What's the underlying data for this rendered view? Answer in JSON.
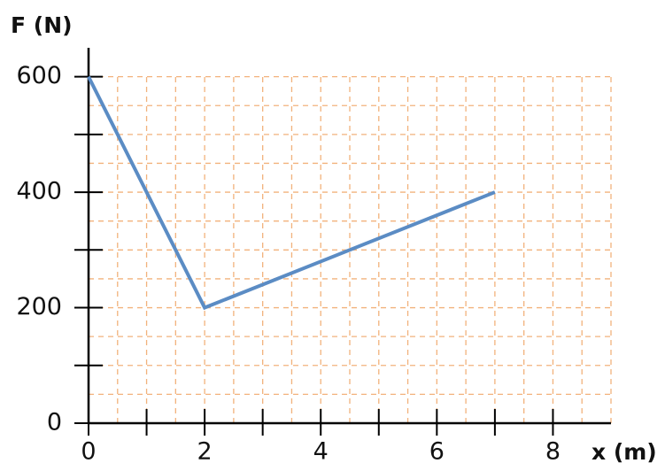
{
  "chart_data": {
    "type": "line",
    "y_label": "F (N)",
    "x_label": "x (m)",
    "x": [
      0,
      2,
      7
    ],
    "values": [
      600,
      200,
      400
    ],
    "color": "#5b8cc4",
    "grid_color": "#f2b27c",
    "xlim": [
      0,
      9
    ],
    "ylim": [
      0,
      650
    ],
    "xticks": [
      0,
      2,
      4,
      6,
      8
    ],
    "xminor": [
      1,
      3,
      5,
      7
    ],
    "yticks": [
      0,
      200,
      400,
      600
    ],
    "yminor": [
      100,
      300,
      500
    ],
    "xgrid": [
      0.5,
      1,
      1.5,
      2,
      2.5,
      3,
      3.5,
      4,
      4.5,
      5,
      5.5,
      6,
      6.5,
      7,
      7.5,
      8,
      8.5,
      9
    ],
    "ygrid": [
      50,
      100,
      150,
      200,
      250,
      300,
      350,
      400,
      450,
      500,
      550,
      600
    ],
    "grid": true
  }
}
